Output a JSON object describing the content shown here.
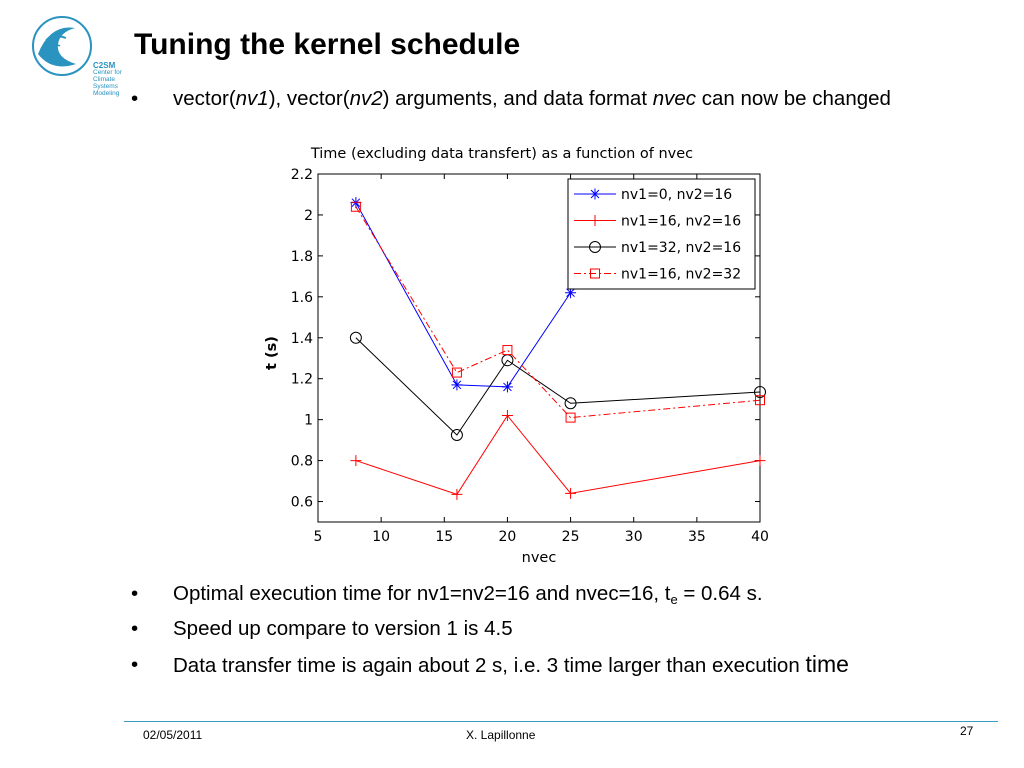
{
  "slide": {
    "title": "Tuning the kernel schedule",
    "logo": {
      "name": "C2SM",
      "line1": "Center for Climate",
      "line2": "Systems Modeling"
    },
    "bullets": [
      {
        "parts": [
          "vector(",
          "nv1",
          "), vector(",
          "nv2",
          ") arguments, and data format ",
          "nvec",
          " can now be changed"
        ]
      },
      {
        "text": "Optimal execution time for nv1=nv2=16 and nvec=16, t",
        "sub": "e",
        "tail": " = 0.64 s."
      },
      {
        "text": "Speed up compare to version 1 is 4.5"
      },
      {
        "text": "Data transfer time is again about 2 s, i.e. 3 time larger than execution",
        "last": "time"
      }
    ],
    "bullet_symbol": "•",
    "footer": {
      "date": "02/05/2011",
      "author": "X. Lapillonne",
      "page": "27"
    }
  },
  "chart_data": {
    "type": "line",
    "title": "Time (excluding data transfert) as a function of nvec",
    "xlabel": "nvec",
    "ylabel": "t (s)",
    "xlim": [
      5,
      40
    ],
    "ylim": [
      0.5,
      2.2
    ],
    "xticks": [
      5,
      10,
      15,
      20,
      25,
      30,
      35,
      40
    ],
    "yticks": [
      0.6,
      0.8,
      1,
      1.2,
      1.4,
      1.6,
      1.8,
      2,
      2.2
    ],
    "ytick_labels": [
      "0.6",
      "0.8",
      "1",
      "1.2",
      "1.4",
      "1.6",
      "1.8",
      "2",
      "2.2"
    ],
    "grid": false,
    "legend_position": "top-right",
    "series": [
      {
        "name": "nv1=0, nv2=16",
        "color": "#0000ff",
        "marker": "asterisk",
        "dash": "solid",
        "x": [
          8,
          16,
          20,
          25
        ],
        "y": [
          2.06,
          1.17,
          1.16,
          1.62
        ]
      },
      {
        "name": "nv1=16, nv2=16",
        "color": "#ff0000",
        "marker": "plus",
        "dash": "solid",
        "x": [
          8,
          16,
          20,
          25,
          40
        ],
        "y": [
          0.8,
          0.635,
          1.02,
          0.64,
          0.8
        ]
      },
      {
        "name": "nv1=32, nv2=16",
        "color": "#000000",
        "marker": "circle",
        "dash": "solid",
        "x": [
          8,
          16,
          20,
          25,
          40
        ],
        "y": [
          1.4,
          0.925,
          1.29,
          1.08,
          1.135
        ]
      },
      {
        "name": "nv1=16, nv2=32",
        "color": "#ff0000",
        "marker": "square",
        "dash": "dashdot",
        "x": [
          8,
          16,
          20,
          25,
          40
        ],
        "y": [
          2.04,
          1.23,
          1.34,
          1.01,
          1.095
        ]
      }
    ]
  }
}
